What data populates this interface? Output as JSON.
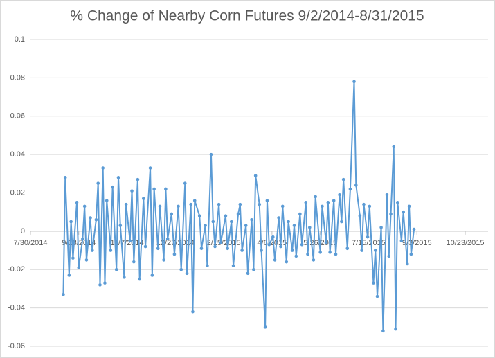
{
  "chart_data": {
    "type": "line",
    "title": "% Change of Nearby Corn Futures 9/2/2014-8/31/2015",
    "x": [
      "9/2/2014",
      "9/4/2014",
      "9/8/2014",
      "9/10/2014",
      "9/12/2014",
      "9/16/2014",
      "9/18/2014",
      "9/22/2014",
      "9/24/2014",
      "9/26/2014",
      "9/30/2014",
      "10/2/2014",
      "10/6/2014",
      "10/8/2014",
      "10/10/2014",
      "10/13/2014",
      "10/15/2014",
      "10/17/2014",
      "10/21/2014",
      "10/23/2014",
      "10/27/2014",
      "10/29/2014",
      "10/31/2014",
      "11/4/2014",
      "11/6/2014",
      "11/10/2014",
      "11/12/2014",
      "11/14/2014",
      "11/18/2014",
      "11/20/2014",
      "11/24/2014",
      "11/26/2014",
      "12/1/2014",
      "12/3/2014",
      "12/5/2014",
      "12/9/2014",
      "12/11/2014",
      "12/15/2014",
      "12/17/2014",
      "12/19/2014",
      "12/23/2014",
      "12/26/2014",
      "12/30/2014",
      "1/2/2015",
      "1/6/2015",
      "1/8/2015",
      "1/12/2015",
      "1/14/2015",
      "1/16/2015",
      "1/21/2015",
      "1/23/2015",
      "1/27/2015",
      "1/29/2015",
      "2/2/2015",
      "2/4/2015",
      "2/6/2015",
      "2/10/2015",
      "2/12/2015",
      "2/17/2015",
      "2/19/2015",
      "2/23/2015",
      "2/25/2015",
      "3/2/2015",
      "3/4/2015",
      "3/6/2015",
      "3/10/2015",
      "3/12/2015",
      "3/16/2015",
      "3/18/2015",
      "3/20/2015",
      "3/24/2015",
      "3/26/2015",
      "3/30/2015",
      "4/1/2015",
      "4/3/2015",
      "4/7/2015",
      "4/9/2015",
      "4/13/2015",
      "4/15/2015",
      "4/17/2015",
      "4/21/2015",
      "4/23/2015",
      "4/27/2015",
      "4/29/2015",
      "5/1/2015",
      "5/5/2015",
      "5/7/2015",
      "5/11/2015",
      "5/13/2015",
      "5/15/2015",
      "5/19/2015",
      "5/21/2015",
      "5/26/2015",
      "5/28/2015",
      "6/1/2015",
      "6/3/2015",
      "6/5/2015",
      "6/9/2015",
      "6/11/2015",
      "6/15/2015",
      "6/17/2015",
      "6/19/2015",
      "6/23/2015",
      "6/26/2015",
      "6/30/2015",
      "7/2/2015",
      "7/6/2015",
      "7/8/2015",
      "7/10/2015",
      "7/14/2015",
      "7/16/2015",
      "7/20/2015",
      "7/22/2015",
      "7/24/2015",
      "7/28/2015",
      "7/30/2015",
      "8/3/2015",
      "8/5/2015",
      "8/7/2015",
      "8/10/2015",
      "8/12/2015",
      "8/14/2015",
      "8/18/2015",
      "8/20/2015",
      "8/24/2015",
      "8/26/2015",
      "8/28/2015",
      "8/31/2015"
    ],
    "series": [
      {
        "color": "#5b9bd5",
        "values": [
          -0.033,
          0.028,
          -0.023,
          0.005,
          -0.014,
          0.015,
          -0.019,
          -0.004,
          0.013,
          -0.015,
          0.007,
          -0.01,
          0.006,
          0.025,
          -0.028,
          0.033,
          -0.027,
          0.016,
          -0.01,
          0.023,
          -0.02,
          0.028,
          0.003,
          -0.024,
          0.014,
          -0.005,
          0.021,
          -0.016,
          0.027,
          -0.025,
          0.017,
          -0.008,
          0.033,
          -0.023,
          0.022,
          -0.009,
          0.013,
          -0.015,
          0.022,
          -0.004,
          0.009,
          -0.012,
          0.013,
          -0.02,
          0.025,
          -0.022,
          0.014,
          -0.042,
          0.016,
          0.008,
          -0.009,
          0.003,
          -0.018,
          0.04,
          0.005,
          -0.008,
          0.014,
          -0.006,
          0.008,
          -0.009,
          0.005,
          -0.018,
          0.009,
          0.014,
          -0.01,
          0.003,
          -0.022,
          0.006,
          -0.02,
          0.029,
          0.014,
          -0.01,
          -0.05,
          0.016,
          -0.007,
          -0.003,
          -0.015,
          0.007,
          -0.008,
          0.013,
          -0.016,
          0.005,
          -0.01,
          0.003,
          -0.013,
          0.009,
          -0.007,
          0.015,
          -0.012,
          0.002,
          -0.015,
          0.018,
          -0.011,
          0.013,
          -0.006,
          0.015,
          -0.011,
          0.016,
          -0.012,
          0.019,
          0.005,
          0.027,
          -0.009,
          0.022,
          0.078,
          0.024,
          0.008,
          -0.01,
          0.014,
          -0.003,
          0.013,
          -0.027,
          -0.01,
          -0.034,
          0.002,
          -0.052,
          0.019,
          -0.013,
          0.009,
          0.044,
          -0.051,
          0.015,
          -0.005,
          0.01,
          -0.017,
          0.013,
          -0.012,
          0.001
        ]
      }
    ],
    "xlim": [
      "7/30/2014",
      "10/23/2015"
    ],
    "xticks": [
      "7/30/2014",
      "9/18/2014",
      "11/7/2014",
      "12/27/2014",
      "2/15/2015",
      "4/6/2015",
      "5/26/2015",
      "7/15/2015",
      "9/3/2015",
      "10/23/2015"
    ],
    "ylim": [
      -0.06,
      0.1
    ],
    "yticks": [
      -0.06,
      -0.04,
      -0.02,
      0,
      0.02,
      0.04,
      0.06,
      0.08,
      0.1
    ],
    "grid": true
  }
}
